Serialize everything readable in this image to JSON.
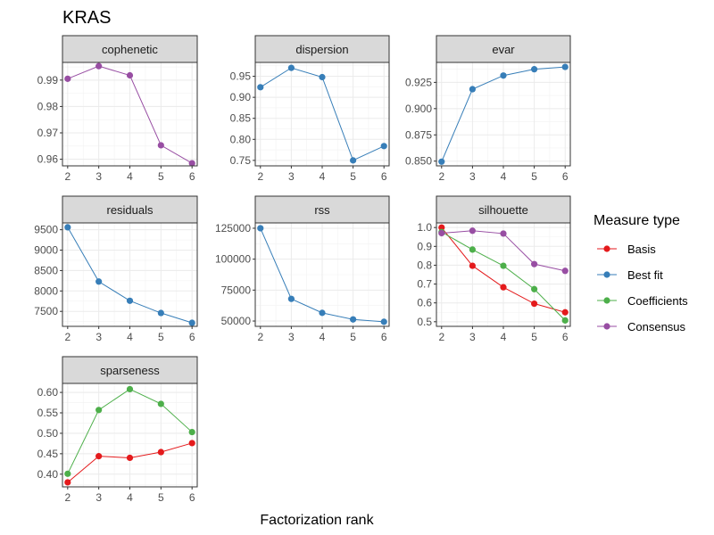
{
  "title": "KRAS",
  "chart_data": {
    "type": "line",
    "title": "KRAS",
    "xlabel": "Factorization rank",
    "ylabel": "",
    "x": [
      2,
      3,
      4,
      5,
      6
    ],
    "grid": true,
    "legend": {
      "title": "Measure type",
      "position": "right",
      "entries": [
        {
          "name": "Basis",
          "color": "#E41A1C"
        },
        {
          "name": "Best fit",
          "color": "#377EB8"
        },
        {
          "name": "Coefficients",
          "color": "#4DAF4A"
        },
        {
          "name": "Consensus",
          "color": "#984EA3"
        }
      ]
    },
    "panels": [
      {
        "name": "cophenetic",
        "ylim": [
          0.9575,
          0.9967
        ],
        "yticks": [
          0.96,
          0.97,
          0.98,
          0.99
        ],
        "ytick_labels": [
          "0.96",
          "0.97",
          "0.98",
          "0.99"
        ],
        "minor_step": 0.005,
        "series": [
          {
            "name": "Consensus",
            "values": [
              0.9905,
              0.9953,
              0.9918,
              0.9653,
              0.9585
            ]
          }
        ]
      },
      {
        "name": "dispersion",
        "ylim": [
          0.737,
          0.983
        ],
        "yticks": [
          0.75,
          0.8,
          0.85,
          0.9,
          0.95
        ],
        "ytick_labels": [
          "0.75",
          "0.80",
          "0.85",
          "0.90",
          "0.95"
        ],
        "minor_step": 0.025,
        "series": [
          {
            "name": "Best fit",
            "values": [
              0.924,
              0.97,
              0.948,
              0.75,
              0.784
            ]
          }
        ]
      },
      {
        "name": "evar",
        "ylim": [
          0.8455,
          0.944
        ],
        "yticks": [
          0.85,
          0.875,
          0.9,
          0.925
        ],
        "ytick_labels": [
          "0.850",
          "0.875",
          "0.900",
          "0.925"
        ],
        "minor_step": 0.0125,
        "series": [
          {
            "name": "Best fit",
            "values": [
              0.8495,
              0.9185,
              0.9315,
              0.9375,
              0.9397
            ]
          }
        ]
      },
      {
        "name": "residuals",
        "ylim": [
          7133,
          9667
        ],
        "yticks": [
          7500,
          8000,
          8500,
          9000,
          9500
        ],
        "ytick_labels": [
          "7500",
          "8000",
          "8500",
          "9000",
          "9500"
        ],
        "minor_step": 250,
        "series": [
          {
            "name": "Best fit",
            "values": [
              9560,
              8230,
              7760,
              7460,
              7220
            ]
          }
        ]
      },
      {
        "name": "rss",
        "ylim": [
          45700,
          129300
        ],
        "yticks": [
          50000,
          75000,
          100000,
          125000
        ],
        "ytick_labels": [
          "50000",
          "75000",
          "100000",
          "125000"
        ],
        "minor_step": 12500,
        "series": [
          {
            "name": "Best fit",
            "values": [
              125000,
              67900,
              56600,
              51300,
              49400
            ]
          }
        ]
      },
      {
        "name": "silhouette",
        "ylim": [
          0.4755,
          1.0245
        ],
        "yticks": [
          0.5,
          0.6,
          0.7,
          0.8,
          0.9,
          1.0
        ],
        "ytick_labels": [
          "0.5",
          "0.6",
          "0.7",
          "0.8",
          "0.9",
          "1.0"
        ],
        "minor_step": 0.05,
        "series": [
          {
            "name": "Basis",
            "values": [
              1.0,
              0.797,
              0.683,
              0.596,
              0.55
            ]
          },
          {
            "name": "Coefficients",
            "values": [
              0.976,
              0.883,
              0.797,
              0.673,
              0.507
            ]
          },
          {
            "name": "Consensus",
            "values": [
              0.97,
              0.983,
              0.968,
              0.806,
              0.77
            ]
          }
        ]
      },
      {
        "name": "sparseness",
        "ylim": [
          0.369,
          0.622
        ],
        "yticks": [
          0.4,
          0.45,
          0.5,
          0.55,
          0.6
        ],
        "ytick_labels": [
          "0.40",
          "0.45",
          "0.50",
          "0.55",
          "0.60"
        ],
        "minor_step": 0.025,
        "series": [
          {
            "name": "Basis",
            "values": [
              0.38,
              0.444,
              0.44,
              0.454,
              0.476
            ]
          },
          {
            "name": "Coefficients",
            "values": [
              0.401,
              0.557,
              0.608,
              0.572,
              0.503
            ]
          }
        ]
      }
    ]
  }
}
